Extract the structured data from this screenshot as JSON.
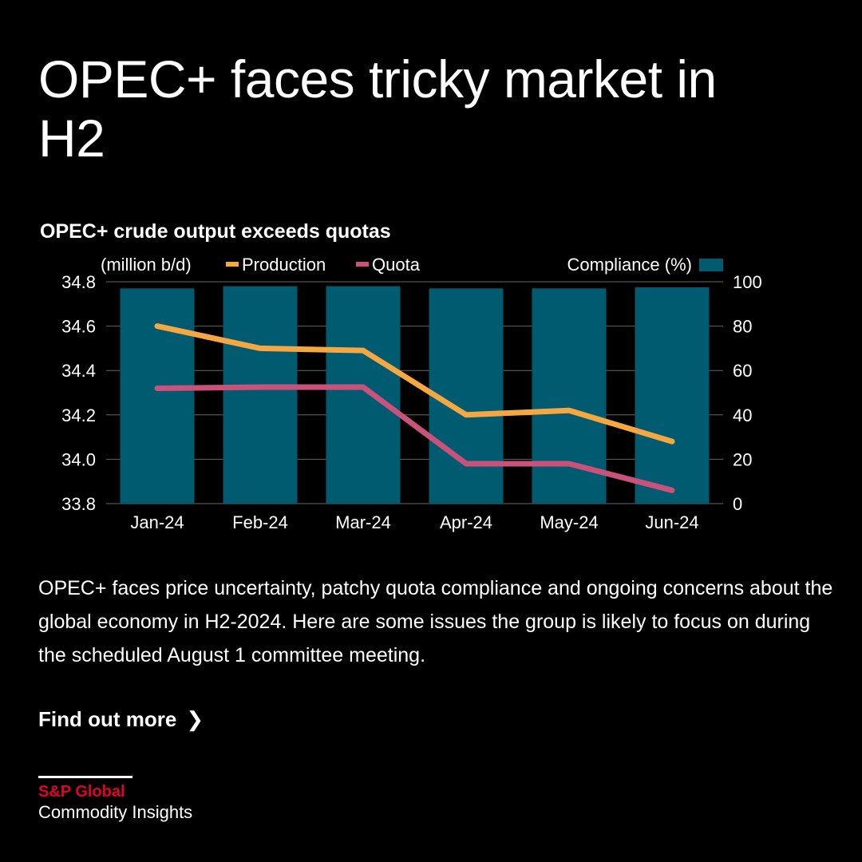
{
  "headline": "OPEC+ faces tricky market in H2",
  "body_text": "OPEC+ faces price uncertainty, patchy quota compliance and ongoing concerns about the global economy in H2-2024. Here are some issues the group is likely to focus on during the scheduled August 1 committee meeting.",
  "cta_label": "Find out more",
  "cta_icon": "chevron-right-icon",
  "logo": {
    "brand": "S&P Global",
    "sub": "Commodity Insights"
  },
  "colors": {
    "production": "#f5a742",
    "quota": "#c9527a",
    "compliance": "#005a70",
    "brand_red": "#e4002b"
  },
  "chart_data": {
    "type": "bar+line",
    "title": "OPEC+ crude output exceeds quotas",
    "ylabel": "(million b/d)",
    "y2label": "Compliance (%)",
    "categories": [
      "Jan-24",
      "Feb-24",
      "Mar-24",
      "Apr-24",
      "May-24",
      "Jun-24"
    ],
    "ylim": [
      33.8,
      34.8
    ],
    "yticks": [
      "34.8",
      "34.6",
      "34.4",
      "34.2",
      "34.0",
      "33.8"
    ],
    "y2lim": [
      0,
      100
    ],
    "y2ticks": [
      "100",
      "80",
      "60",
      "40",
      "20",
      "0"
    ],
    "series": [
      {
        "name": "Compliance (%)",
        "type": "bar",
        "axis": "right",
        "values": [
          97,
          98,
          98,
          97,
          97,
          97.5
        ]
      },
      {
        "name": "Production",
        "type": "line",
        "axis": "left",
        "values": [
          34.6,
          34.5,
          34.49,
          34.2,
          34.22,
          34.08
        ]
      },
      {
        "name": "Quota",
        "type": "line",
        "axis": "left",
        "values": [
          34.32,
          34.325,
          34.325,
          33.98,
          33.98,
          33.86
        ]
      }
    ],
    "grid": true,
    "legend_placement": "top"
  }
}
